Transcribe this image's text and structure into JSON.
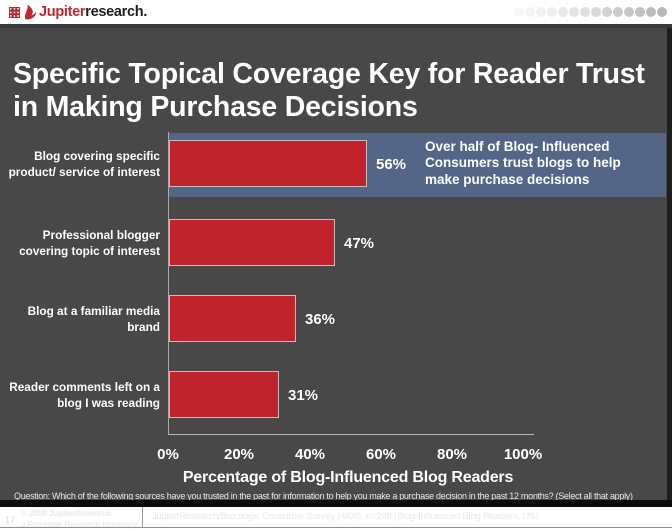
{
  "header": {
    "brand_primary": "Jupiter",
    "brand_secondary": "research.",
    "logo_color": "#c4262e",
    "dots": [
      "#f7f7f7",
      "#f4f4f4",
      "#f1f1f1",
      "#ededed",
      "#e8e8e8",
      "#e3e3e3",
      "#dedede",
      "#d8d8d8",
      "#d2d2d2",
      "#cccccc",
      "#c6c6c6",
      "#c1c1c1",
      "#bcbcbc",
      "#b8b8b8"
    ]
  },
  "slide": {
    "background_color": "#484848",
    "title": "Specific Topical Coverage Key for Reader Trust in Making Purchase Decisions",
    "callout_text": "Over half of Blog- Influenced Consumers trust blogs to help make purchase decisions",
    "callout_bg": "#546687",
    "question": "Question: Which of the following sources have you trusted in the past for information to help you make a purchase decision in the past 12 months? (Select all that apply)",
    "footer": {
      "page_number": "17",
      "copyright_line1": "© 2008 JupiterResearch",
      "copyright_line2": "a Forrester Research company",
      "source": "JupiterResearch/Buzzlogic Consumer Survey (4/08), n=209 (Blog-Influenced Blog Readers, US)"
    }
  },
  "chart_data": {
    "type": "bar",
    "orientation": "horizontal",
    "title": "Specific Topical Coverage Key for Reader Trust in Making Purchase Decisions",
    "categories": [
      "Blog covering specific product/ service of interest",
      "Professional blogger covering topic of interest",
      "Blog at a familiar media brand",
      "Reader comments left on a blog I was reading"
    ],
    "values": [
      56,
      47,
      36,
      31
    ],
    "value_labels": [
      "56%",
      "47%",
      "36%",
      "31%"
    ],
    "xlabel": "Percentage of Blog-Influenced Blog Readers",
    "ylabel": "",
    "x_ticks": [
      "0%",
      "20%",
      "40%",
      "60%",
      "80%",
      "100%"
    ],
    "xlim": [
      0,
      100
    ],
    "grid": false,
    "legend": false,
    "bar_color": "#c0232c",
    "bar_border_color": "#ccb9b9",
    "annotation": "Over half of Blog- Influenced Consumers trust blogs to help make purchase decisions"
  }
}
